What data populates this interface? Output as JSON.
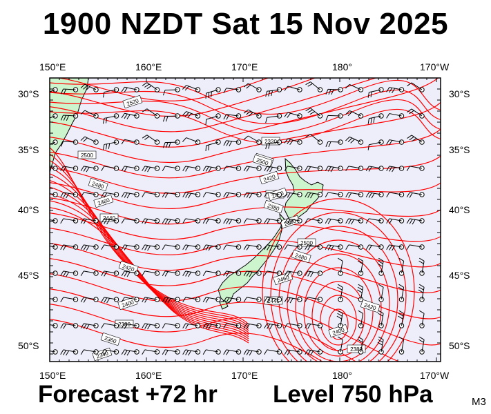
{
  "header": {
    "title": "1900 NZDT Sat 15 Nov 2025"
  },
  "footer": {
    "forecast": "Forecast +72 hr",
    "level": "Level 750 hPa",
    "code": "M3"
  },
  "axes": {
    "top_lon_labels": [
      "150°E",
      "160°E",
      "170°E",
      "180°",
      "170°W"
    ],
    "bottom_lon_labels": [
      "150°E",
      "160°E",
      "170°E",
      "180°",
      "170°W"
    ],
    "left_lat_labels": [
      "30°S",
      "35°S",
      "40°S",
      "45°S",
      "50°S"
    ],
    "right_lat_labels": [
      "30°S",
      "35°S",
      "40°S",
      "45°S",
      "50°S"
    ]
  },
  "contour_labels": [
    "2520",
    "2500",
    "2480",
    "2460",
    "2440",
    "2420",
    "2400",
    "2380",
    "2360",
    "2340",
    "2320",
    "2440",
    "2420",
    "2400",
    "2380",
    "2360",
    "2500",
    "2480",
    "2460",
    "2440",
    "2420",
    "2400",
    "2380",
    "2500",
    "2480"
  ],
  "colors": {
    "sea": "#eeeefb",
    "land": "#cdf5cd",
    "contour": "#ff0000",
    "wind": "#000000",
    "frame": "#000000"
  }
}
